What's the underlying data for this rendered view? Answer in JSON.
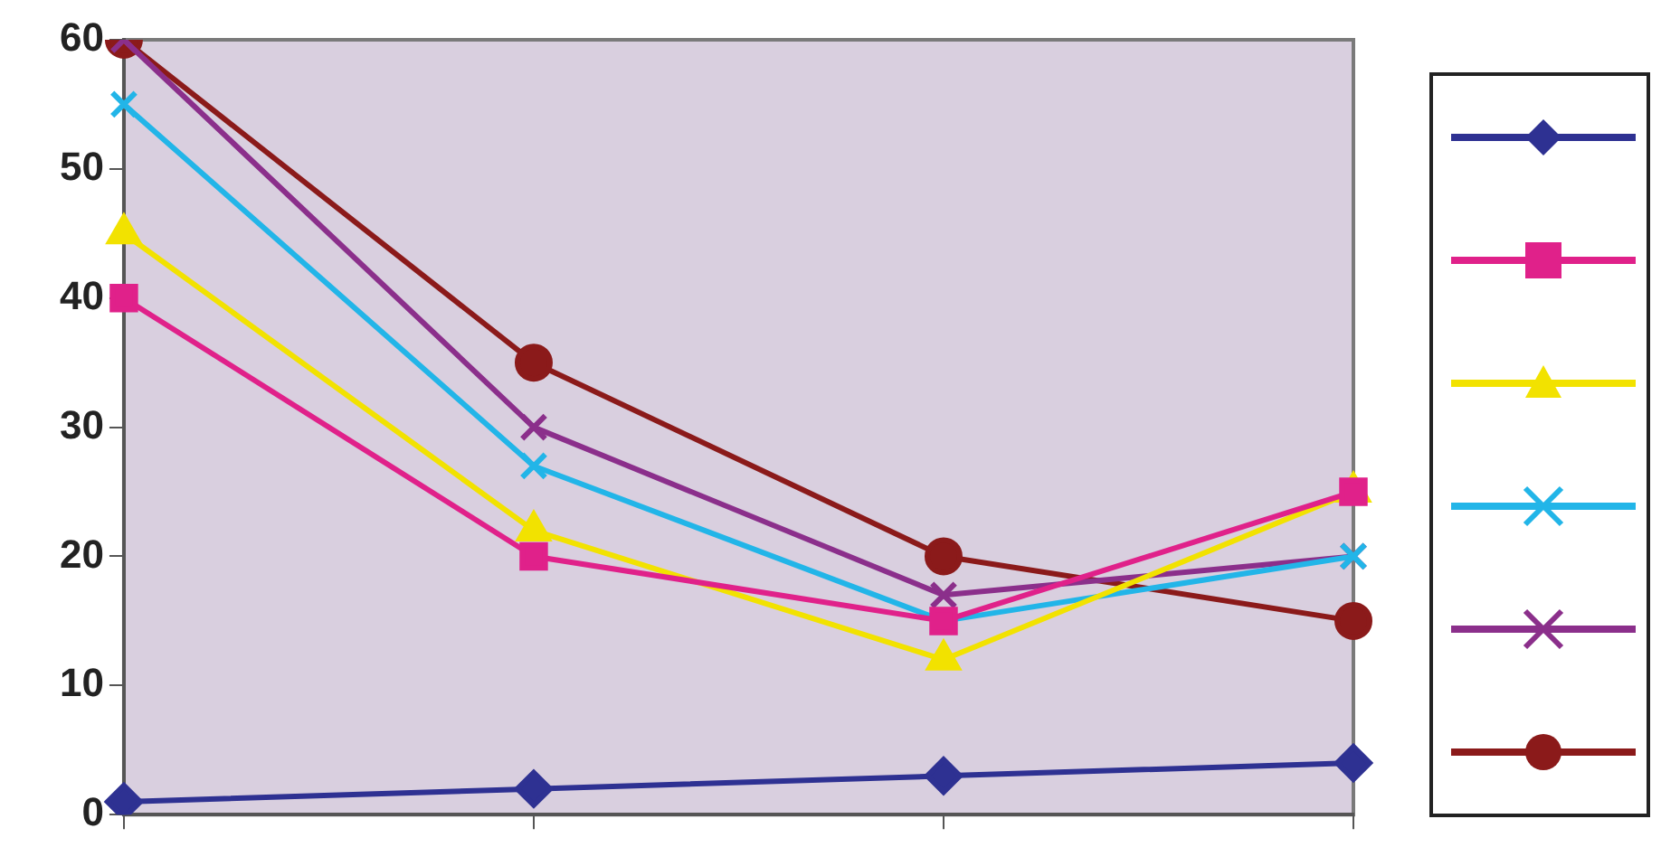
{
  "chart_data": {
    "type": "line",
    "categories": [
      null,
      null,
      null,
      null
    ],
    "series": [
      {
        "color": "#2e3192",
        "marker": "diamond",
        "values": [
          1,
          2,
          3,
          4
        ]
      },
      {
        "color": "#e0218a",
        "marker": "square",
        "values": [
          40,
          20,
          15,
          25
        ]
      },
      {
        "color": "#f2e200",
        "marker": "triangle",
        "values": [
          45,
          22,
          12,
          25
        ]
      },
      {
        "color": "#22b5e8",
        "marker": "cross",
        "values": [
          55,
          27,
          15,
          20
        ]
      },
      {
        "color": "#8b2f8b",
        "marker": "cross",
        "values": [
          60,
          30,
          17,
          20
        ]
      },
      {
        "color": "#8b1a1a",
        "marker": "circle",
        "values": [
          60,
          35,
          20,
          15
        ]
      }
    ],
    "ylim": [
      0,
      60
    ],
    "yticks": [
      0,
      10,
      20,
      30,
      40,
      50,
      60
    ],
    "grid": false
  }
}
